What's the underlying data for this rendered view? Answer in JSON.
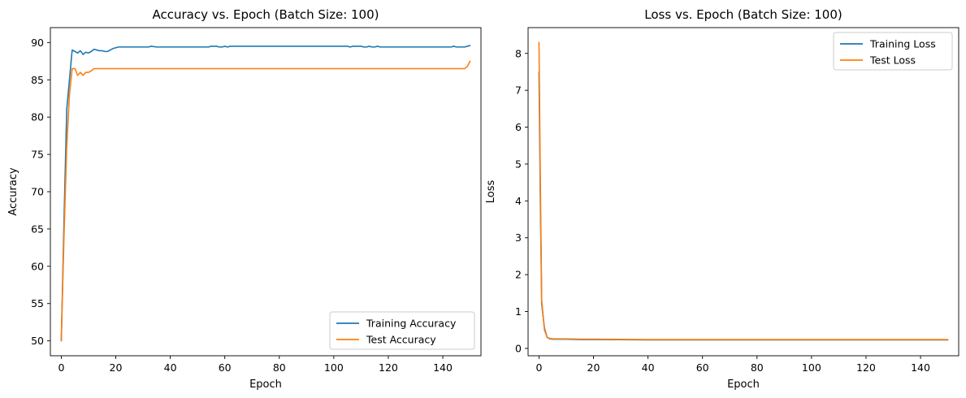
{
  "chart_data": [
    {
      "type": "line",
      "title": "Accuracy vs. Epoch (Batch Size: 100)",
      "xlabel": "Epoch",
      "ylabel": "Accuracy",
      "xlim": [
        -4,
        154
      ],
      "ylim": [
        48.0,
        92.0
      ],
      "xticks": [
        0,
        20,
        40,
        60,
        80,
        100,
        120,
        140
      ],
      "yticks": [
        50,
        55,
        60,
        65,
        70,
        75,
        80,
        85,
        90
      ],
      "grid": false,
      "legend_position": "lower-right",
      "series": [
        {
          "name": "Training Accuracy",
          "color": "#1f77b4",
          "x": [
            0,
            1,
            2,
            3,
            4,
            5,
            6,
            7,
            8,
            9,
            10,
            11,
            12,
            13,
            14,
            15,
            16,
            17,
            18,
            19,
            20,
            21,
            22,
            25,
            30,
            32,
            33,
            35,
            40,
            45,
            50,
            54,
            55,
            57,
            58,
            59,
            60,
            61,
            62,
            65,
            70,
            80,
            90,
            100,
            105,
            106,
            107,
            110,
            111,
            112,
            113,
            114,
            115,
            116,
            117,
            118,
            119,
            120,
            125,
            130,
            135,
            140,
            143,
            144,
            145,
            146,
            147,
            148,
            149,
            150
          ],
          "y": [
            50.0,
            66.0,
            81.0,
            85.0,
            89.0,
            88.8,
            88.6,
            88.9,
            88.4,
            88.7,
            88.6,
            88.8,
            89.1,
            89.0,
            88.9,
            88.9,
            88.8,
            88.8,
            89.0,
            89.2,
            89.3,
            89.4,
            89.4,
            89.4,
            89.4,
            89.4,
            89.5,
            89.4,
            89.4,
            89.4,
            89.4,
            89.4,
            89.5,
            89.5,
            89.4,
            89.4,
            89.5,
            89.4,
            89.5,
            89.5,
            89.5,
            89.5,
            89.5,
            89.5,
            89.5,
            89.4,
            89.5,
            89.5,
            89.4,
            89.4,
            89.5,
            89.4,
            89.4,
            89.5,
            89.4,
            89.4,
            89.4,
            89.4,
            89.4,
            89.4,
            89.4,
            89.4,
            89.4,
            89.5,
            89.4,
            89.4,
            89.4,
            89.4,
            89.5,
            89.6
          ]
        },
        {
          "name": "Test Accuracy",
          "color": "#ff7f0e",
          "x": [
            0,
            1,
            2,
            3,
            4,
            5,
            6,
            7,
            8,
            9,
            10,
            11,
            12,
            13,
            15,
            20,
            30,
            40,
            60,
            80,
            100,
            120,
            140,
            148,
            149,
            150
          ],
          "y": [
            50.0,
            64.0,
            76.0,
            83.0,
            86.5,
            86.5,
            85.6,
            86.0,
            85.6,
            86.0,
            86.0,
            86.2,
            86.5,
            86.5,
            86.5,
            86.5,
            86.5,
            86.5,
            86.5,
            86.5,
            86.5,
            86.5,
            86.5,
            86.5,
            86.8,
            87.5
          ]
        }
      ]
    },
    {
      "type": "line",
      "title": "Loss vs. Epoch (Batch Size: 100)",
      "xlabel": "Epoch",
      "ylabel": "Loss",
      "xlim": [
        -4,
        154
      ],
      "ylim": [
        -0.2,
        8.7
      ],
      "xticks": [
        0,
        20,
        40,
        60,
        80,
        100,
        120,
        140
      ],
      "yticks": [
        0,
        1,
        2,
        3,
        4,
        5,
        6,
        7,
        8
      ],
      "grid": false,
      "legend_position": "upper-right",
      "series": [
        {
          "name": "Training Loss",
          "color": "#1f77b4",
          "x": [
            0,
            0.5,
            1,
            2,
            3,
            4,
            5,
            10,
            15,
            20,
            40,
            60,
            80,
            100,
            120,
            140,
            150
          ],
          "y": [
            7.5,
            4.0,
            1.2,
            0.55,
            0.3,
            0.26,
            0.25,
            0.25,
            0.24,
            0.24,
            0.23,
            0.23,
            0.23,
            0.23,
            0.23,
            0.23,
            0.23
          ]
        },
        {
          "name": "Test Loss",
          "color": "#ff7f0e",
          "x": [
            0,
            0.5,
            1,
            2,
            3,
            4,
            5,
            10,
            15,
            20,
            40,
            60,
            80,
            100,
            120,
            140,
            150
          ],
          "y": [
            8.3,
            4.5,
            1.3,
            0.5,
            0.3,
            0.27,
            0.26,
            0.26,
            0.25,
            0.25,
            0.24,
            0.24,
            0.24,
            0.24,
            0.24,
            0.24,
            0.24
          ]
        }
      ]
    }
  ]
}
